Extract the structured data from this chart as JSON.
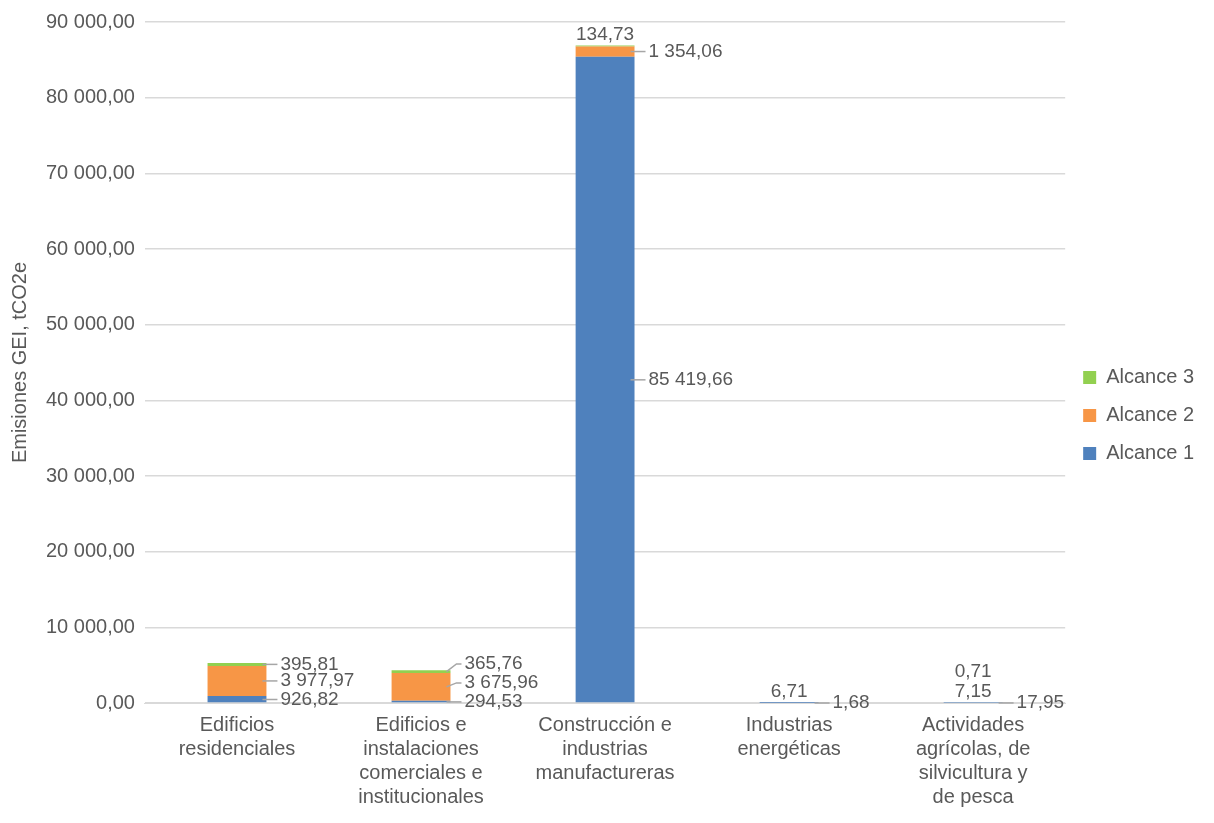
{
  "chart_data": {
    "type": "bar",
    "stacked": true,
    "ylabel": "Emisiones GEI, tCO2e",
    "categories": [
      "Edificios residenciales",
      "Edificios e instalaciones comerciales e institucionales",
      "Construcción e industrias manufactureras",
      "Industrias energéticas",
      "Actividades agrícolas, de silvicultura y de pesca"
    ],
    "series": [
      {
        "name": "Alcance 1",
        "color": "#4f81bd",
        "values": [
          926.82,
          294.53,
          85419.66,
          1.68,
          17.95
        ],
        "value_labels": [
          "926,82",
          "294,53",
          "85 419,66",
          "1,68",
          "17,95"
        ]
      },
      {
        "name": "Alcance 2",
        "color": "#f79646",
        "values": [
          3977.97,
          3675.96,
          1354.06,
          6.71,
          7.15
        ],
        "value_labels": [
          "3 977,97",
          "3 675,96",
          "1 354,06",
          "6,71",
          "7,15"
        ]
      },
      {
        "name": "Alcance 3",
        "color": "#92d050",
        "values": [
          395.81,
          365.76,
          134.73,
          null,
          0.71
        ],
        "value_labels": [
          "395,81",
          "365,76",
          "134,73",
          null,
          "0,71"
        ]
      }
    ],
    "ylim": [
      0,
      90000
    ],
    "yticks": [
      {
        "value": 0,
        "label": "0,00"
      },
      {
        "value": 10000,
        "label": "10 000,00"
      },
      {
        "value": 20000,
        "label": "20 000,00"
      },
      {
        "value": 30000,
        "label": "30 000,00"
      },
      {
        "value": 40000,
        "label": "40 000,00"
      },
      {
        "value": 50000,
        "label": "50 000,00"
      },
      {
        "value": 60000,
        "label": "60 000,00"
      },
      {
        "value": 70000,
        "label": "70 000,00"
      },
      {
        "value": 80000,
        "label": "80 000,00"
      },
      {
        "value": 90000,
        "label": "90 000,00"
      }
    ],
    "grid": "y",
    "legend": "right"
  }
}
